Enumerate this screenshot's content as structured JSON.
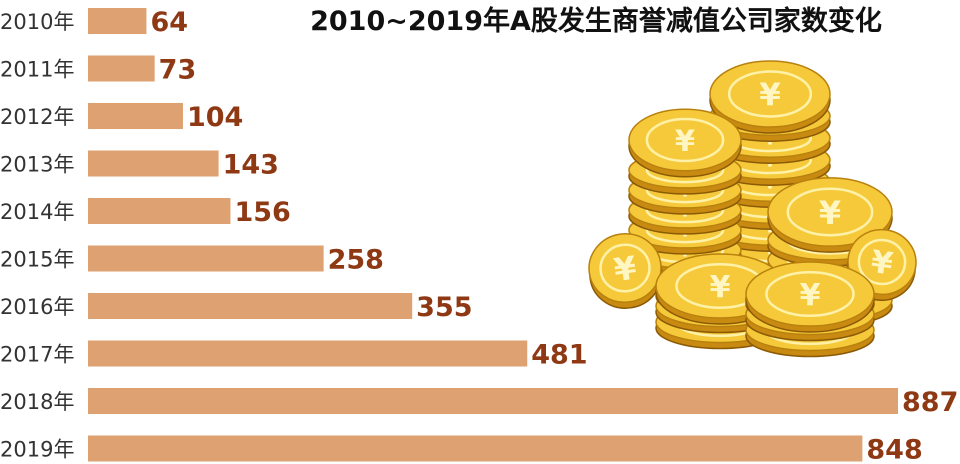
{
  "chart_data": {
    "type": "bar",
    "orientation": "horizontal",
    "title": "2010~2019年A股发生商誉减值公司家数变化",
    "categories": [
      "2010年",
      "2011年",
      "2012年",
      "2013年",
      "2014年",
      "2015年",
      "2016年",
      "2017年",
      "2018年",
      "2019年"
    ],
    "values": [
      64,
      73,
      104,
      143,
      156,
      258,
      355,
      481,
      887,
      848
    ],
    "value_labels": [
      "64",
      "73",
      "104",
      "143",
      "156",
      "258",
      "355",
      "481",
      "887",
      "848"
    ],
    "xlabel": "",
    "ylabel": "",
    "xlim": [
      0,
      887
    ],
    "grid": false,
    "legend": "none",
    "bar_color": "#dea272",
    "label_color": "#8e3814"
  },
  "decoration": {
    "image": "gold-yuan-coin-stacks",
    "coin_symbol": "¥"
  }
}
